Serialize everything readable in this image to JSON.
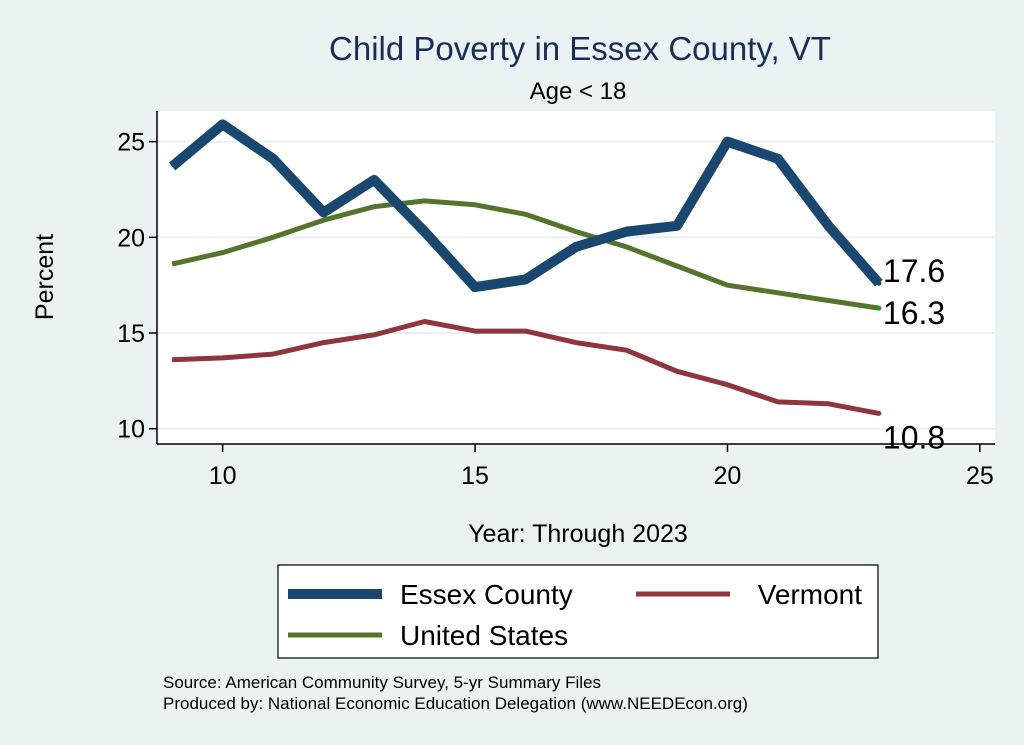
{
  "chart_data": {
    "type": "line",
    "title": "Child Poverty in Essex County, VT",
    "subtitle": "Age < 18",
    "xlabel": "Year: Through 2023",
    "ylabel": "Percent",
    "xlim": [
      8.7,
      25.3
    ],
    "ylim": [
      9.2,
      26.6
    ],
    "xticks": [
      10,
      15,
      20,
      25
    ],
    "yticks": [
      10,
      15,
      20,
      25
    ],
    "grid": true,
    "legend_position": "bottom",
    "series": [
      {
        "name": "Essex County",
        "color": "#1a476f",
        "width": 10,
        "x": [
          9,
          10,
          11,
          12,
          13,
          14,
          15,
          16,
          17,
          18,
          19,
          20,
          21,
          22,
          23
        ],
        "y": [
          23.7,
          25.9,
          24.1,
          21.3,
          23.0,
          20.3,
          17.4,
          17.8,
          19.5,
          20.3,
          20.6,
          25.0,
          24.1,
          20.6,
          17.6
        ],
        "end_label": "17.6"
      },
      {
        "name": "Vermont",
        "color": "#90353b",
        "width": 5,
        "x": [
          9,
          10,
          11,
          12,
          13,
          14,
          15,
          16,
          17,
          18,
          19,
          20,
          21,
          22,
          23
        ],
        "y": [
          13.6,
          13.7,
          13.9,
          14.5,
          14.9,
          15.6,
          15.1,
          15.1,
          14.5,
          14.1,
          13.0,
          12.3,
          11.4,
          11.3,
          10.8
        ],
        "end_label": "10.8"
      },
      {
        "name": "United States",
        "color": "#55752f",
        "width": 5,
        "x": [
          9,
          10,
          11,
          12,
          13,
          14,
          15,
          16,
          17,
          18,
          19,
          20,
          21,
          22,
          23
        ],
        "y": [
          18.6,
          19.2,
          20.0,
          20.9,
          21.6,
          21.9,
          21.7,
          21.2,
          20.3,
          19.5,
          18.5,
          17.5,
          17.1,
          16.7,
          16.3
        ],
        "end_label": "16.3"
      }
    ],
    "legend_layout": [
      [
        "Essex County",
        "Vermont"
      ],
      [
        "United States"
      ]
    ]
  },
  "source_lines": [
    "Source: American Community Survey, 5-yr Summary Files",
    "Produced by: National Economic Education Delegation (www.NEEDEcon.org)"
  ]
}
